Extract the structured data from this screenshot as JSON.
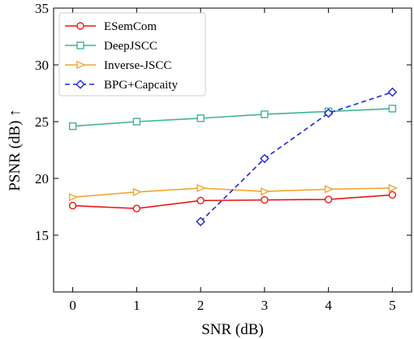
{
  "chart_data": {
    "type": "line",
    "xlabel": "SNR (dB)",
    "ylabel": "PSNR (dB) ↑",
    "xlim": [
      -0.3,
      5.3
    ],
    "ylim": [
      10,
      35
    ],
    "xticks": [
      0,
      1,
      2,
      3,
      4,
      5
    ],
    "yticks": [
      15,
      20,
      25,
      30,
      35
    ],
    "legend_position": "top-left",
    "grid": false,
    "series": [
      {
        "name": "ESemCom",
        "color": "#e8191c",
        "marker": "circle",
        "dash": "solid",
        "x": [
          0,
          1,
          2,
          3,
          4,
          5
        ],
        "y": [
          17.6,
          17.35,
          18.05,
          18.1,
          18.15,
          18.55
        ]
      },
      {
        "name": "DeepJSCC",
        "color": "#3fb39a",
        "marker": "square",
        "dash": "solid",
        "x": [
          0,
          1,
          2,
          3,
          4,
          5
        ],
        "y": [
          24.6,
          25.0,
          25.3,
          25.65,
          25.9,
          26.15
        ]
      },
      {
        "name": "Inverse-JSCC",
        "color": "#f0a830",
        "marker": "triangle-right",
        "dash": "solid",
        "x": [
          0,
          1,
          2,
          3,
          4,
          5
        ],
        "y": [
          18.35,
          18.8,
          19.15,
          18.85,
          19.05,
          19.15
        ]
      },
      {
        "name": "BPG+Capcaity",
        "color": "#1f28d6",
        "marker": "diamond",
        "dash": "dashed",
        "x": [
          2,
          3,
          4,
          5
        ],
        "y": [
          16.2,
          21.75,
          25.75,
          27.6
        ]
      }
    ]
  }
}
